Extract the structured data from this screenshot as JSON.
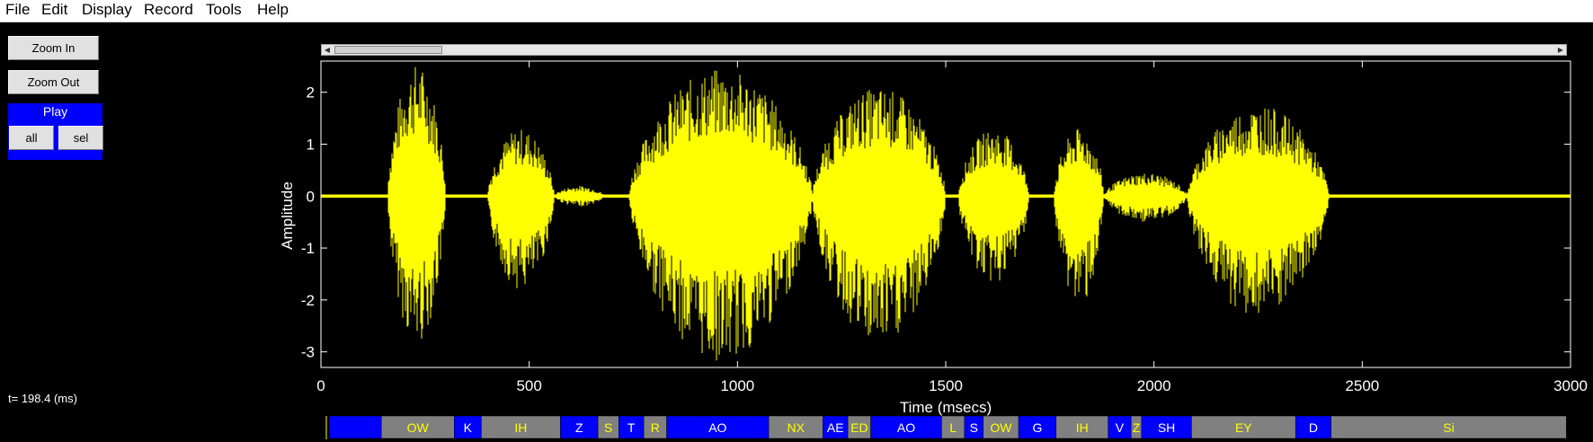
{
  "menu": [
    "File",
    "Edit",
    "Display",
    "Record",
    "Tools",
    "Help"
  ],
  "controls": {
    "zoom_in": "Zoom In",
    "zoom_out": "Zoom Out",
    "play_title": "Play",
    "play_all": "all",
    "play_sel": "sel",
    "time_readout": "t= 198.4 (ms)"
  },
  "colors": {
    "background": "#000000",
    "waveform": "#ffff00",
    "axes": "#ffffff",
    "segment_blue": "#0000ff",
    "segment_gray": "#808080",
    "label_text_yellow": "#ffff00",
    "label_text_white": "#ffffff"
  },
  "chart_data": {
    "type": "line",
    "xlabel": "Time (msecs)",
    "ylabel": "Amplitude",
    "xlim": [
      0,
      3000
    ],
    "ylim": [
      -3.3,
      2.6
    ],
    "xticks": [
      0,
      500,
      1000,
      1500,
      2000,
      2500,
      3000
    ],
    "yticks": [
      2,
      1,
      0,
      -1,
      -2,
      -3
    ],
    "envelope": [
      {
        "start": 160,
        "end": 300,
        "max": 2.55,
        "min": -2.85
      },
      {
        "start": 400,
        "end": 560,
        "max": 1.3,
        "min": -1.8
      },
      {
        "start": 560,
        "end": 680,
        "max": 0.2,
        "min": -0.2
      },
      {
        "start": 740,
        "end": 1180,
        "max": 2.45,
        "min": -3.2
      },
      {
        "start": 1180,
        "end": 1500,
        "max": 2.1,
        "min": -2.9
      },
      {
        "start": 1530,
        "end": 1700,
        "max": 1.3,
        "min": -1.7
      },
      {
        "start": 1760,
        "end": 1880,
        "max": 1.3,
        "min": -2.1
      },
      {
        "start": 1880,
        "end": 2080,
        "max": 0.45,
        "min": -0.5
      },
      {
        "start": 2080,
        "end": 2420,
        "max": 1.75,
        "min": -2.35
      }
    ]
  },
  "segments": [
    {
      "label": "",
      "start": 20,
      "end": 145,
      "color": "blue"
    },
    {
      "label": "OW",
      "start": 145,
      "end": 320,
      "color": "gray"
    },
    {
      "label": "K",
      "start": 320,
      "end": 385,
      "color": "blue"
    },
    {
      "label": "IH",
      "start": 385,
      "end": 575,
      "color": "gray"
    },
    {
      "label": "Z",
      "start": 575,
      "end": 665,
      "color": "blue"
    },
    {
      "label": "S",
      "start": 665,
      "end": 715,
      "color": "gray"
    },
    {
      "label": "T",
      "start": 715,
      "end": 775,
      "color": "blue"
    },
    {
      "label": "R",
      "start": 775,
      "end": 830,
      "color": "gray"
    },
    {
      "label": "AO",
      "start": 830,
      "end": 1075,
      "color": "blue"
    },
    {
      "label": "NX",
      "start": 1075,
      "end": 1205,
      "color": "gray"
    },
    {
      "label": "AE",
      "start": 1205,
      "end": 1265,
      "color": "blue"
    },
    {
      "label": "ED",
      "start": 1265,
      "end": 1320,
      "color": "gray"
    },
    {
      "label": "AO",
      "start": 1320,
      "end": 1490,
      "color": "blue"
    },
    {
      "label": "L",
      "start": 1490,
      "end": 1545,
      "color": "gray"
    },
    {
      "label": "S",
      "start": 1545,
      "end": 1590,
      "color": "blue"
    },
    {
      "label": "OW",
      "start": 1590,
      "end": 1675,
      "color": "gray"
    },
    {
      "label": "G",
      "start": 1675,
      "end": 1765,
      "color": "blue"
    },
    {
      "label": "IH",
      "start": 1765,
      "end": 1890,
      "color": "gray"
    },
    {
      "label": "V",
      "start": 1890,
      "end": 1945,
      "color": "blue"
    },
    {
      "label": "Z",
      "start": 1945,
      "end": 1970,
      "color": "gray"
    },
    {
      "label": "SH",
      "start": 1970,
      "end": 2090,
      "color": "blue"
    },
    {
      "label": "EY",
      "start": 2090,
      "end": 2340,
      "color": "gray"
    },
    {
      "label": "D",
      "start": 2340,
      "end": 2425,
      "color": "blue"
    },
    {
      "label": "Si",
      "start": 2425,
      "end": 2990,
      "color": "gray"
    }
  ]
}
